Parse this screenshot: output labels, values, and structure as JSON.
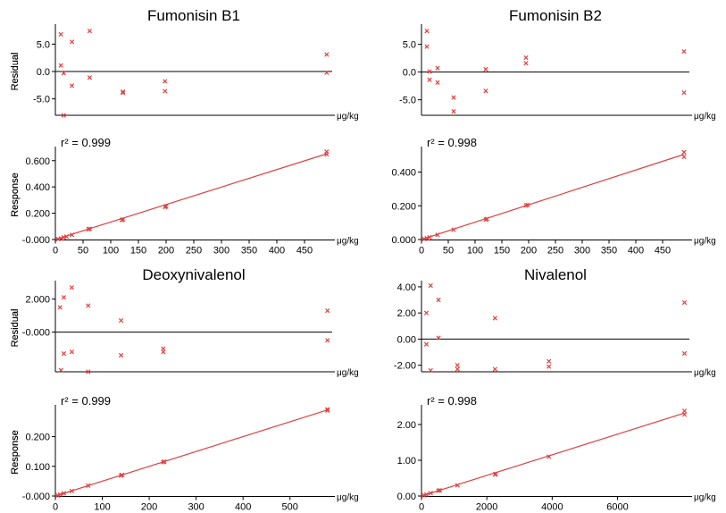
{
  "chart_data": [
    {
      "type": "scatter",
      "title": "Fumonisin B1",
      "ylabel": "Residual",
      "xunit": "μg/kg",
      "ylim": [
        -8,
        8
      ],
      "yticks": [
        "5.0",
        "0.0",
        "-5.0"
      ],
      "ytick_values": [
        5,
        0,
        -5
      ],
      "xlim": [
        0,
        500
      ],
      "zero_line": true,
      "points": [
        [
          10,
          6.8
        ],
        [
          10,
          1.1
        ],
        [
          15,
          -0.3
        ],
        [
          15,
          -8.0
        ],
        [
          30,
          5.4
        ],
        [
          30,
          -2.6
        ],
        [
          62,
          7.4
        ],
        [
          62,
          -1.1
        ],
        [
          122,
          -3.7
        ],
        [
          122,
          -3.9
        ],
        [
          198,
          -1.8
        ],
        [
          198,
          -3.6
        ],
        [
          490,
          3.1
        ],
        [
          490,
          -0.2
        ]
      ],
      "color": "#e04040"
    },
    {
      "type": "line",
      "r2": "r² = 0.999",
      "ylabel": "Response",
      "xunit": "μg/kg",
      "ylim": [
        0,
        0.68
      ],
      "yticks": [
        "0.600",
        "0.400",
        "0.200",
        "-0.000"
      ],
      "ytick_values": [
        0.6,
        0.4,
        0.2,
        0
      ],
      "xlim": [
        0,
        500
      ],
      "xticks": [
        "0",
        "50",
        "100",
        "150",
        "200",
        "250",
        "300",
        "350",
        "400",
        "450"
      ],
      "xtick_values": [
        0,
        50,
        100,
        150,
        200,
        250,
        300,
        350,
        400,
        450
      ],
      "fit": [
        [
          0,
          0
        ],
        [
          490,
          0.652
        ]
      ],
      "points": [
        [
          5,
          0.003
        ],
        [
          10,
          0.008
        ],
        [
          15,
          0.016
        ],
        [
          20,
          0.022
        ],
        [
          30,
          0.036
        ],
        [
          60,
          0.078
        ],
        [
          62,
          0.082
        ],
        [
          120,
          0.148
        ],
        [
          122,
          0.152
        ],
        [
          198,
          0.248
        ],
        [
          200,
          0.252
        ],
        [
          490,
          0.648
        ],
        [
          490,
          0.668
        ]
      ],
      "color": "#e04040"
    },
    {
      "type": "scatter",
      "title": "Fumonisin B2",
      "ylabel": "Residual",
      "xunit": "μg/kg",
      "ylim": [
        -7.8,
        8
      ],
      "yticks": [
        "5.0",
        "0.0",
        "-5.0"
      ],
      "ytick_values": [
        5,
        0,
        -5
      ],
      "xlim": [
        0,
        500
      ],
      "zero_line": true,
      "points": [
        [
          10,
          7.4
        ],
        [
          10,
          4.6
        ],
        [
          15,
          0.1
        ],
        [
          15,
          -1.4
        ],
        [
          30,
          0.7
        ],
        [
          30,
          -1.9
        ],
        [
          60,
          -4.6
        ],
        [
          60,
          -7.1
        ],
        [
          120,
          0.5
        ],
        [
          120,
          -3.4
        ],
        [
          195,
          2.6
        ],
        [
          195,
          1.6
        ],
        [
          490,
          3.7
        ],
        [
          490,
          -3.7
        ]
      ],
      "color": "#e04040"
    },
    {
      "type": "line",
      "r2": "r² = 0.998",
      "ylabel": "Response",
      "xunit": "μg/kg",
      "ylim": [
        0,
        0.53
      ],
      "yticks": [
        "0.400",
        "0.200",
        "0.000"
      ],
      "ytick_values": [
        0.4,
        0.2,
        0
      ],
      "xlim": [
        0,
        500
      ],
      "xticks": [
        "0",
        "50",
        "100",
        "150",
        "200",
        "250",
        "300",
        "350",
        "400",
        "450"
      ],
      "xtick_values": [
        0,
        50,
        100,
        150,
        200,
        250,
        300,
        350,
        400,
        450
      ],
      "fit": [
        [
          0,
          0
        ],
        [
          490,
          0.505
        ]
      ],
      "points": [
        [
          5,
          0.003
        ],
        [
          10,
          0.008
        ],
        [
          15,
          0.013
        ],
        [
          30,
          0.028
        ],
        [
          60,
          0.058
        ],
        [
          120,
          0.118
        ],
        [
          122,
          0.122
        ],
        [
          195,
          0.202
        ],
        [
          198,
          0.205
        ],
        [
          490,
          0.49
        ],
        [
          490,
          0.518
        ]
      ],
      "color": "#e04040"
    },
    {
      "type": "scatter",
      "title": "Deoxynivalenol",
      "ylabel": "Residual",
      "xunit": "μg/kg",
      "ylim": [
        -2.4,
        2.9
      ],
      "yticks": [
        "2.000",
        "-0.000"
      ],
      "ytick_values": [
        2,
        0
      ],
      "xlim": [
        0,
        590
      ],
      "zero_line": true,
      "points": [
        [
          10,
          1.5
        ],
        [
          12,
          -2.3
        ],
        [
          18,
          2.1
        ],
        [
          18,
          -1.3
        ],
        [
          35,
          2.7
        ],
        [
          35,
          -1.2
        ],
        [
          70,
          1.6
        ],
        [
          70,
          -2.4
        ],
        [
          140,
          0.7
        ],
        [
          140,
          -1.4
        ],
        [
          230,
          -1.0
        ],
        [
          230,
          -1.2
        ],
        [
          580,
          1.3
        ],
        [
          580,
          -0.5
        ]
      ],
      "color": "#e04040"
    },
    {
      "type": "line",
      "r2": "r² = 0.999",
      "ylabel": "Response",
      "xunit": "μg/kg",
      "ylim": [
        0,
        0.295
      ],
      "yticks": [
        "0.200",
        "0.100",
        "-0.000"
      ],
      "ytick_values": [
        0.2,
        0.1,
        0
      ],
      "xlim": [
        0,
        590
      ],
      "xticks": [
        "0",
        "100",
        "200",
        "300",
        "400",
        "500"
      ],
      "xtick_values": [
        0,
        100,
        200,
        300,
        400,
        500
      ],
      "fit": [
        [
          0,
          0
        ],
        [
          580,
          0.29
        ]
      ],
      "points": [
        [
          5,
          0.002
        ],
        [
          10,
          0.005
        ],
        [
          18,
          0.009
        ],
        [
          35,
          0.017
        ],
        [
          70,
          0.035
        ],
        [
          140,
          0.069
        ],
        [
          142,
          0.071
        ],
        [
          230,
          0.114
        ],
        [
          232,
          0.116
        ],
        [
          580,
          0.288
        ],
        [
          580,
          0.292
        ]
      ],
      "color": "#e04040"
    },
    {
      "type": "scatter",
      "title": "Nivalenol",
      "ylabel": "Residual",
      "xunit": "μg/kg",
      "ylim": [
        -2.5,
        4.2
      ],
      "yticks": [
        "4.00",
        "2.00",
        "0.00",
        "-2.00"
      ],
      "ytick_values": [
        4,
        2,
        0,
        -2
      ],
      "xlim": [
        0,
        8200
      ],
      "zero_line": true,
      "points": [
        [
          150,
          2.0
        ],
        [
          150,
          -0.4
        ],
        [
          280,
          4.1
        ],
        [
          280,
          -2.4
        ],
        [
          520,
          3.0
        ],
        [
          520,
          0.1
        ],
        [
          1100,
          -2.0
        ],
        [
          1100,
          -2.3
        ],
        [
          2250,
          1.6
        ],
        [
          2250,
          -2.3
        ],
        [
          3900,
          -1.7
        ],
        [
          3900,
          -2.1
        ],
        [
          8050,
          2.8
        ],
        [
          8050,
          -1.1
        ]
      ],
      "color": "#e04040"
    },
    {
      "type": "line",
      "r2": "r² = 0.998",
      "ylabel": "Response",
      "xunit": "μg/kg",
      "ylim": [
        0,
        2.45
      ],
      "yticks": [
        "2.00",
        "1.00",
        "0.00"
      ],
      "ytick_values": [
        2,
        1,
        0
      ],
      "xlim": [
        0,
        8200
      ],
      "xticks": [
        "0",
        "2000",
        "4000",
        "6000"
      ],
      "xtick_values": [
        0,
        2000,
        4000,
        6000
      ],
      "fit": [
        [
          0,
          0
        ],
        [
          8050,
          2.32
        ]
      ],
      "points": [
        [
          80,
          0.02
        ],
        [
          150,
          0.04
        ],
        [
          280,
          0.08
        ],
        [
          520,
          0.15
        ],
        [
          560,
          0.16
        ],
        [
          1100,
          0.3
        ],
        [
          2250,
          0.6
        ],
        [
          2270,
          0.62
        ],
        [
          3900,
          1.1
        ],
        [
          8050,
          2.28
        ],
        [
          8050,
          2.38
        ]
      ],
      "color": "#e04040"
    }
  ]
}
